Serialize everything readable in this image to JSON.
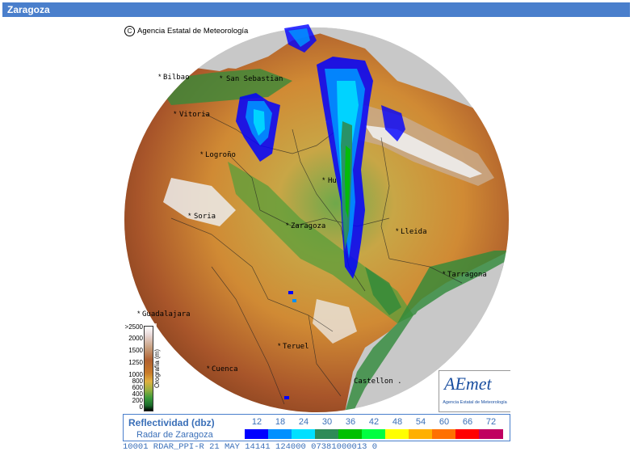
{
  "header": {
    "title": "Zaragoza"
  },
  "map": {
    "copyright": "Agencia Estatal de Meteorología",
    "cities": [
      {
        "name": "Bilbao"
      },
      {
        "name": "San Sebastian"
      },
      {
        "name": "Vitoria"
      },
      {
        "name": "Logroño"
      },
      {
        "name": "Hu"
      },
      {
        "name": "Soria"
      },
      {
        "name": "Zaragoza"
      },
      {
        "name": "Lleida"
      },
      {
        "name": "Tarragona"
      },
      {
        "name": "Guadalajara"
      },
      {
        "name": "Teruel"
      },
      {
        "name": "Cuenca"
      },
      {
        "name": "Castellon ."
      }
    ],
    "colors": {
      "terrain_low": "#2f8a3a",
      "terrain_mid": "#d49a3a",
      "terrain_high": "#a8552a",
      "coverage_out": "#c8c8c8",
      "sea": "#c8c8c8"
    }
  },
  "orography_legend": {
    "label": "Orografía (m)",
    "ticks": [
      ">2500",
      "2000",
      "1500",
      "1250",
      "1000",
      "800",
      "600",
      "400",
      "200",
      "0"
    ]
  },
  "logo": {
    "name": "AEmet",
    "subtitle": "Agencia Estatal de Meteorología"
  },
  "reflectivity_legend": {
    "title": "Reflectividad (dbz)",
    "subtitle": "Radar de Zaragoza",
    "scale": [
      {
        "value": "12",
        "color": "#0000ff"
      },
      {
        "value": "18",
        "color": "#0090ff"
      },
      {
        "value": "24",
        "color": "#00e0ff"
      },
      {
        "value": "30",
        "color": "#2e8b57"
      },
      {
        "value": "36",
        "color": "#00c000"
      },
      {
        "value": "42",
        "color": "#00ff40"
      },
      {
        "value": "48",
        "color": "#ffff00"
      },
      {
        "value": "54",
        "color": "#ffb000"
      },
      {
        "value": "60",
        "color": "#ff7000"
      },
      {
        "value": "66",
        "color": "#ff0000"
      },
      {
        "value": "72",
        "color": "#c00060"
      }
    ]
  },
  "info_bar": {
    "text": "10001 RDAR_PPI-R   21 MAY 14141 124000 07381000013 0"
  }
}
